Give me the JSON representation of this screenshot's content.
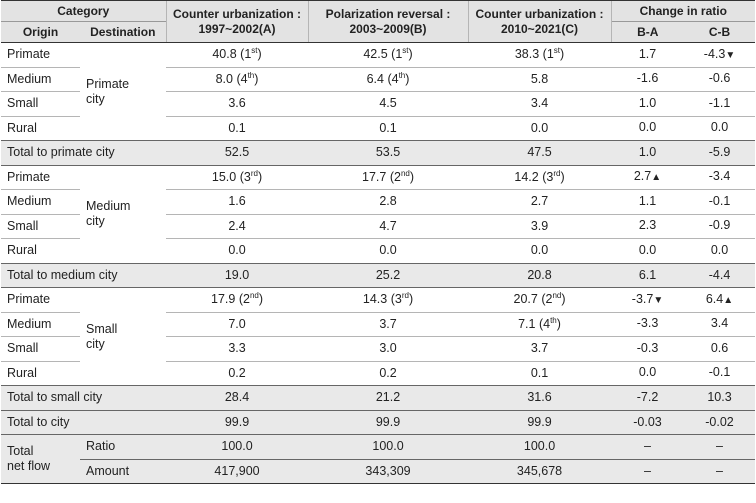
{
  "header": {
    "category": "Category",
    "origin": "Origin",
    "destination": "Destination",
    "colA_l1": "Counter urbanization :",
    "colA_l2": "1997~2002(A)",
    "colB_l1": "Polarization reversal :",
    "colB_l2": "2003~2009(B)",
    "colC_l1": "Counter urbanization :",
    "colC_l2": "2010~2021(C)",
    "change": "Change in ratio",
    "ba": "B-A",
    "cb": "C-B"
  },
  "groups": [
    {
      "dest_l1": "Primate",
      "dest_l2": "city",
      "rows": [
        {
          "origin": "Primate",
          "a": "40.8",
          "a_rank": "1",
          "a_sup": "st",
          "b": "42.5",
          "b_rank": "1",
          "b_sup": "st",
          "c": "38.3",
          "c_rank": "1",
          "c_sup": "st",
          "ba": "1.7",
          "ba_arrow": "",
          "cb": "-4.3",
          "cb_arrow": "▼"
        },
        {
          "origin": "Medium",
          "a": "8.0",
          "a_rank": "4",
          "a_sup": "th",
          "b": "6.4",
          "b_rank": "4",
          "b_sup": "th",
          "c": "5.8",
          "c_rank": "",
          "c_sup": "",
          "ba": "-1.6",
          "ba_arrow": "",
          "cb": "-0.6",
          "cb_arrow": ""
        },
        {
          "origin": "Small",
          "a": "3.6",
          "a_rank": "",
          "a_sup": "",
          "b": "4.5",
          "b_rank": "",
          "b_sup": "",
          "c": "3.4",
          "c_rank": "",
          "c_sup": "",
          "ba": "1.0",
          "ba_arrow": "",
          "cb": "-1.1",
          "cb_arrow": ""
        },
        {
          "origin": "Rural",
          "a": "0.1",
          "a_rank": "",
          "a_sup": "",
          "b": "0.1",
          "b_rank": "",
          "b_sup": "",
          "c": "0.0",
          "c_rank": "",
          "c_sup": "",
          "ba": "0.0",
          "ba_arrow": "",
          "cb": "0.0",
          "cb_arrow": ""
        }
      ],
      "total": {
        "label": "Total to primate city",
        "a": "52.5",
        "b": "53.5",
        "c": "47.5",
        "ba": "1.0",
        "cb": "-5.9"
      }
    },
    {
      "dest_l1": "Medium",
      "dest_l2": "city",
      "rows": [
        {
          "origin": "Primate",
          "a": "15.0",
          "a_rank": "3",
          "a_sup": "rd",
          "b": "17.7",
          "b_rank": "2",
          "b_sup": "nd",
          "c": "14.2",
          "c_rank": "3",
          "c_sup": "rd",
          "ba": "2.7",
          "ba_arrow": "▲",
          "cb": "-3.4",
          "cb_arrow": ""
        },
        {
          "origin": "Medium",
          "a": "1.6",
          "a_rank": "",
          "a_sup": "",
          "b": "2.8",
          "b_rank": "",
          "b_sup": "",
          "c": "2.7",
          "c_rank": "",
          "c_sup": "",
          "ba": "1.1",
          "ba_arrow": "",
          "cb": "-0.1",
          "cb_arrow": ""
        },
        {
          "origin": "Small",
          "a": "2.4",
          "a_rank": "",
          "a_sup": "",
          "b": "4.7",
          "b_rank": "",
          "b_sup": "",
          "c": "3.9",
          "c_rank": "",
          "c_sup": "",
          "ba": "2.3",
          "ba_arrow": "",
          "cb": "-0.9",
          "cb_arrow": ""
        },
        {
          "origin": "Rural",
          "a": "0.0",
          "a_rank": "",
          "a_sup": "",
          "b": "0.0",
          "b_rank": "",
          "b_sup": "",
          "c": "0.0",
          "c_rank": "",
          "c_sup": "",
          "ba": "0.0",
          "ba_arrow": "",
          "cb": "0.0",
          "cb_arrow": ""
        }
      ],
      "total": {
        "label": "Total to medium city",
        "a": "19.0",
        "b": "25.2",
        "c": "20.8",
        "ba": "6.1",
        "cb": "-4.4"
      }
    },
    {
      "dest_l1": "Small",
      "dest_l2": "city",
      "rows": [
        {
          "origin": "Primate",
          "a": "17.9",
          "a_rank": "2",
          "a_sup": "nd",
          "b": "14.3",
          "b_rank": "3",
          "b_sup": "rd",
          "c": "20.7",
          "c_rank": "2",
          "c_sup": "nd",
          "ba": "-3.7",
          "ba_arrow": "▼",
          "cb": "6.4",
          "cb_arrow": "▲"
        },
        {
          "origin": "Medium",
          "a": "7.0",
          "a_rank": "",
          "a_sup": "",
          "b": "3.7",
          "b_rank": "",
          "b_sup": "",
          "c": "7.1",
          "c_rank": "4",
          "c_sup": "th",
          "ba": "-3.3",
          "ba_arrow": "",
          "cb": "3.4",
          "cb_arrow": ""
        },
        {
          "origin": "Small",
          "a": "3.3",
          "a_rank": "",
          "a_sup": "",
          "b": "3.0",
          "b_rank": "",
          "b_sup": "",
          "c": "3.7",
          "c_rank": "",
          "c_sup": "",
          "ba": "-0.3",
          "ba_arrow": "",
          "cb": "0.6",
          "cb_arrow": ""
        },
        {
          "origin": "Rural",
          "a": "0.2",
          "a_rank": "",
          "a_sup": "",
          "b": "0.2",
          "b_rank": "",
          "b_sup": "",
          "c": "0.1",
          "c_rank": "",
          "c_sup": "",
          "ba": "0.0",
          "ba_arrow": "",
          "cb": "-0.1",
          "cb_arrow": ""
        }
      ],
      "total": {
        "label": "Total to small city",
        "a": "28.4",
        "b": "21.2",
        "c": "31.6",
        "ba": "-7.2",
        "cb": "10.3"
      }
    }
  ],
  "total_city": {
    "label": "Total to city",
    "a": "99.9",
    "b": "99.9",
    "c": "99.9",
    "ba": "-0.03",
    "cb": "-0.02"
  },
  "net_flow": {
    "label_l1": "Total",
    "label_l2": "net flow",
    "ratio": {
      "label": "Ratio",
      "a": "100.0",
      "b": "100.0",
      "c": "100.0",
      "ba": "–",
      "cb": "–"
    },
    "amount": {
      "label": "Amount",
      "a": "417,900",
      "b": "343,309",
      "c": "345,678",
      "ba": "–",
      "cb": "–"
    }
  }
}
